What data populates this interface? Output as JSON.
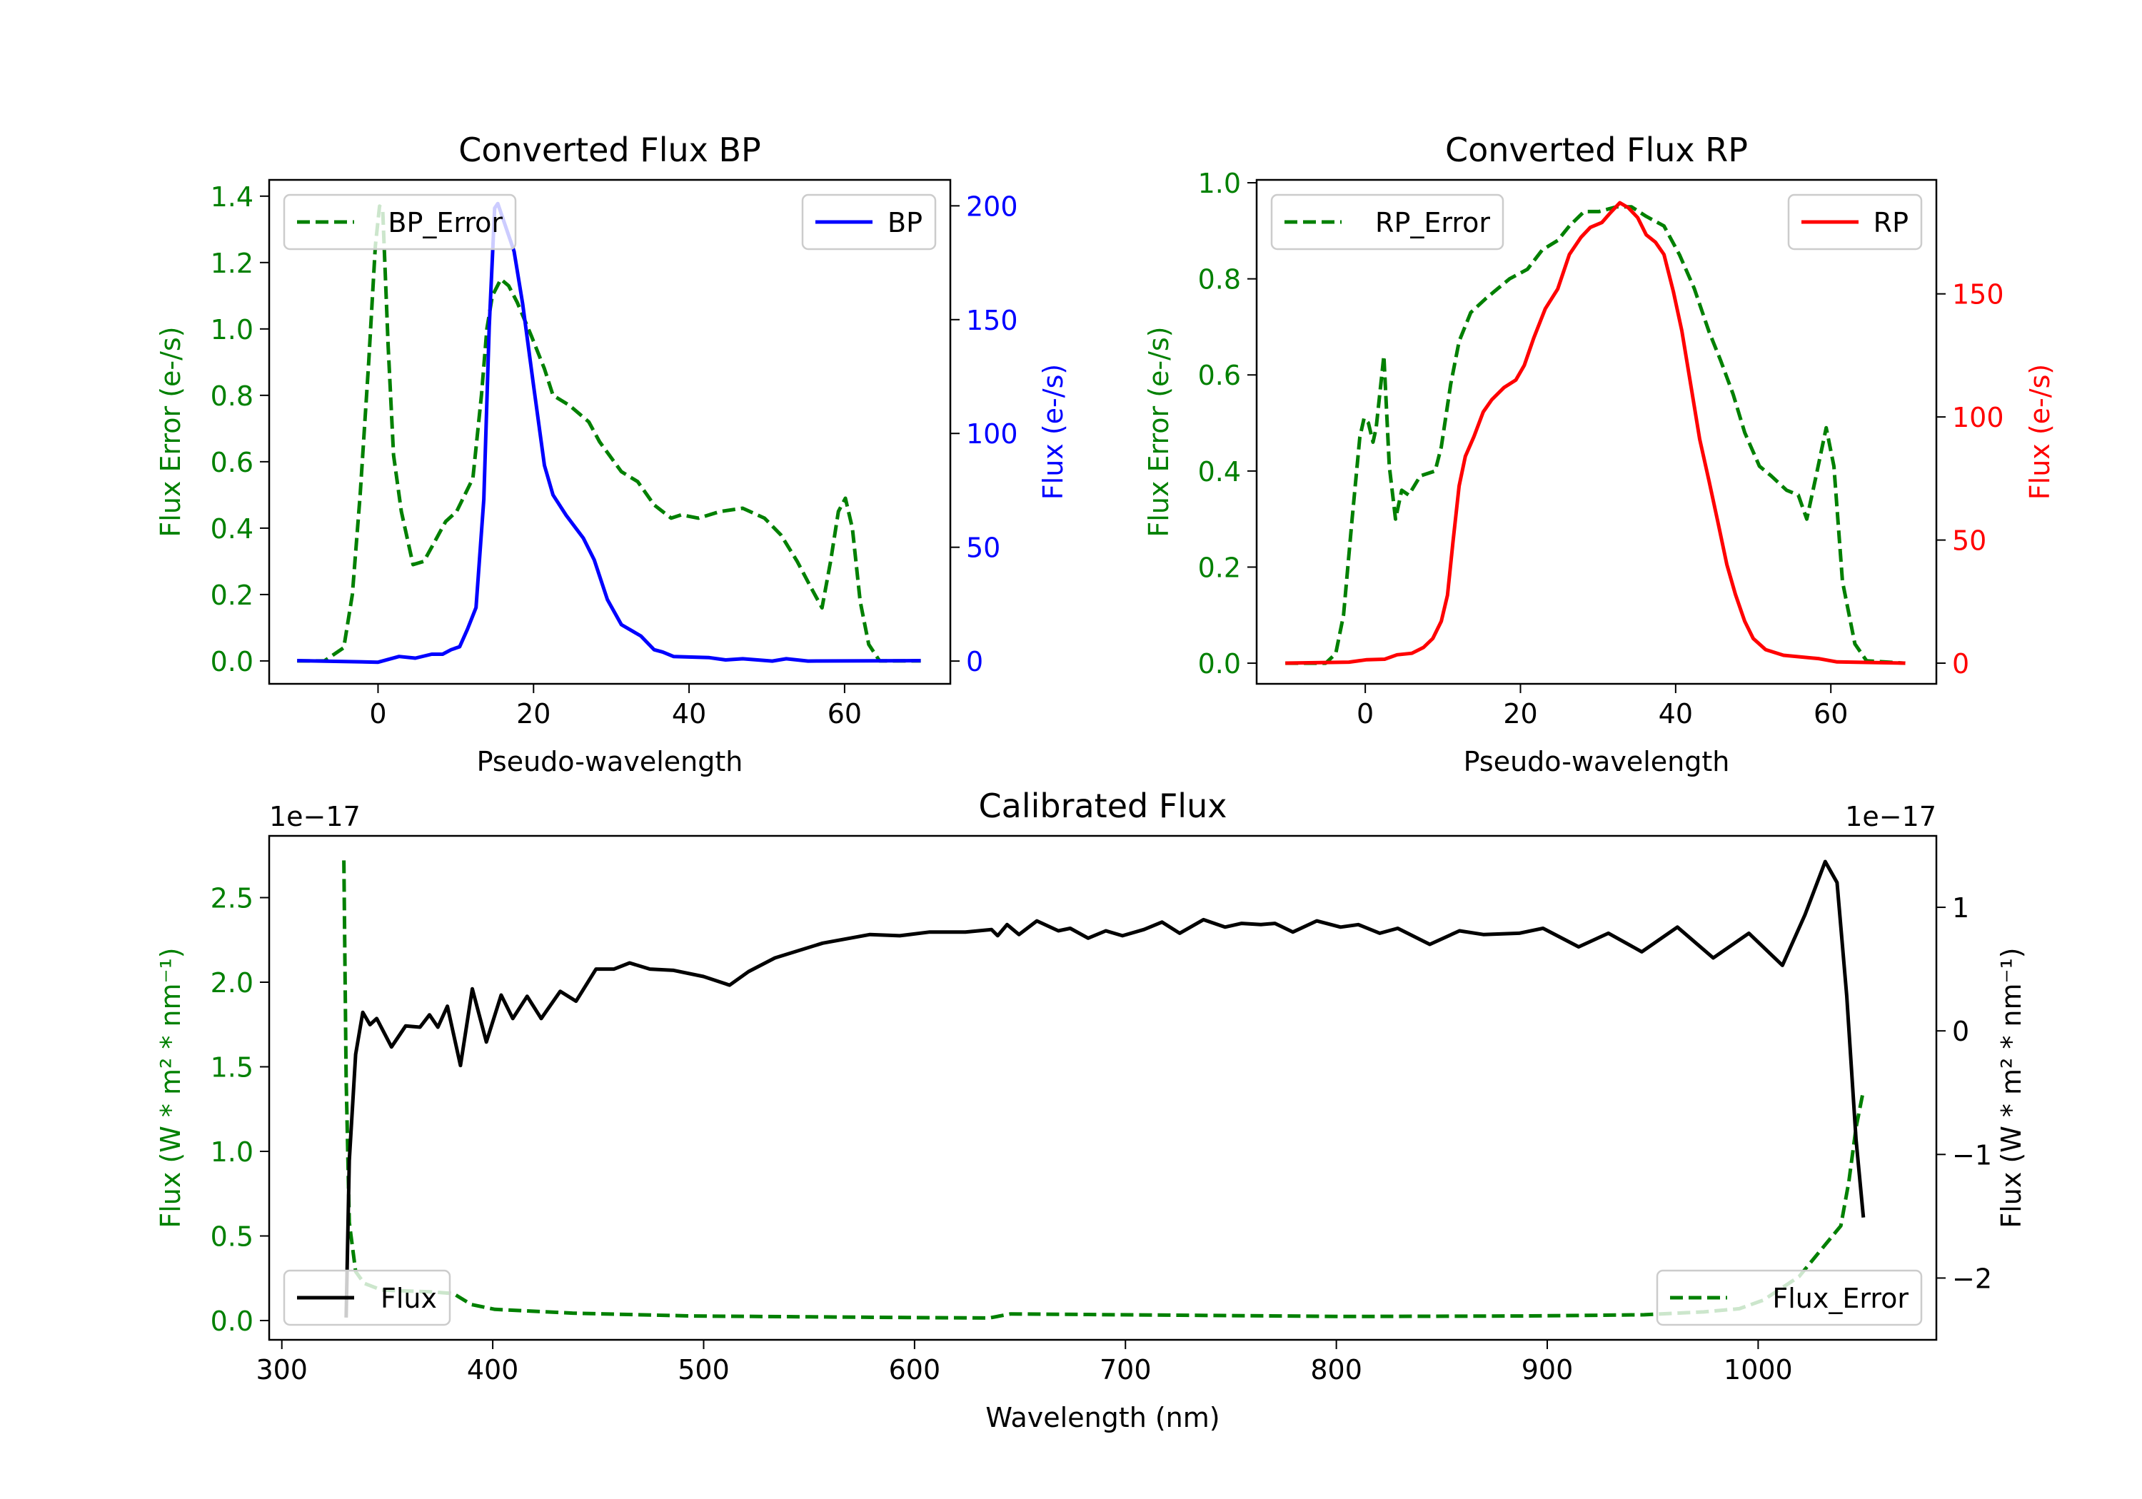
{
  "chart_data": [
    {
      "type": "line",
      "title": "Converted Flux BP",
      "xlabel": "Pseudo-wavelength",
      "ylabel_left": "Flux Error (e-/s)",
      "ylabel_right": "Flux (e-/s)",
      "left_color": "#008000",
      "right_color": "#0000ff",
      "xlim": [
        -14,
        73.6
      ],
      "ylim_left": [
        -0.069,
        1.449
      ],
      "ylim_right": [
        -10,
        211.4
      ],
      "xticks": [
        0,
        20,
        40,
        60
      ],
      "xtick_labels": [
        "0",
        "20",
        "40",
        "60"
      ],
      "yticks_left": [
        0,
        0.2,
        0.4,
        0.6,
        0.8,
        1.0,
        1.2,
        1.4
      ],
      "ytick_labels_left": [
        "0.0",
        "0.2",
        "0.4",
        "0.6",
        "0.8",
        "1.0",
        "1.2",
        "1.4"
      ],
      "yticks_right": [
        0,
        50,
        100,
        150,
        200
      ],
      "ytick_labels_right": [
        "0",
        "50",
        "100",
        "150",
        "200"
      ],
      "grid": false,
      "legends": [
        {
          "label": "BP_Error",
          "placement": "upper-left",
          "color": "#008000",
          "style": "dashed"
        },
        {
          "label": "BP",
          "placement": "upper-right",
          "color": "#0000ff",
          "style": "solid"
        }
      ],
      "series": [
        {
          "name": "BP_Error",
          "axis": "left",
          "color": "#008000",
          "style": "dashed",
          "x": [
            -10.4,
            -6.9,
            -4.4,
            -3.3,
            -2.3,
            -1.2,
            -0.35,
            0.2,
            0.6,
            1.3,
            2,
            3,
            4.5,
            5.9,
            7.3,
            8.7,
            10.1,
            12.2,
            13.3,
            14,
            14.7,
            15.8,
            16.8,
            17.9,
            19.7,
            21.4,
            22.5,
            24.6,
            27.1,
            28.5,
            31.3,
            33.4,
            35.5,
            37.7,
            39,
            41.2,
            44,
            46.9,
            49.7,
            51.8,
            53.9,
            55.7,
            57.1,
            58.2,
            59.2,
            60.1,
            61,
            62,
            63.1,
            64.5,
            69.8
          ],
          "y": [
            0,
            0,
            0.04,
            0.2,
            0.5,
            0.9,
            1.25,
            1.37,
            1.36,
            0.95,
            0.62,
            0.45,
            0.29,
            0.3,
            0.36,
            0.42,
            0.45,
            0.55,
            0.8,
            1.0,
            1.1,
            1.15,
            1.13,
            1.08,
            0.98,
            0.88,
            0.8,
            0.77,
            0.72,
            0.66,
            0.57,
            0.54,
            0.47,
            0.43,
            0.44,
            0.43,
            0.45,
            0.46,
            0.43,
            0.38,
            0.3,
            0.22,
            0.16,
            0.3,
            0.45,
            0.49,
            0.4,
            0.18,
            0.05,
            0,
            0
          ]
        },
        {
          "name": "BP",
          "axis": "right",
          "color": "#0000ff",
          "style": "solid",
          "x": [
            -10.4,
            0,
            2.7,
            4.8,
            6.9,
            8.3,
            9.4,
            10.5,
            11.5,
            12.6,
            13.6,
            14.3,
            15,
            15.4,
            17.5,
            18.6,
            20,
            21.4,
            22.5,
            24.2,
            26.4,
            27.8,
            29.5,
            31.3,
            33.8,
            35.5,
            36.6,
            38,
            42.6,
            44.7,
            46.9,
            50.7,
            52.5,
            55.3,
            69.8
          ],
          "y": [
            0.2,
            -0.5,
            2,
            1.3,
            3,
            3,
            5,
            6.3,
            14,
            23.5,
            71,
            147,
            199,
            201,
            180,
            157,
            121,
            86,
            73,
            64,
            54,
            44.5,
            27,
            16,
            11,
            5,
            4,
            2,
            1.5,
            0.5,
            1,
            0,
            1,
            0,
            0.2
          ]
        }
      ]
    },
    {
      "type": "line",
      "title": "Converted Flux RP",
      "xlabel": "Pseudo-wavelength",
      "ylabel_left": "Flux Error (e-/s)",
      "ylabel_right": "Flux (e-/s)",
      "left_color": "#008000",
      "right_color": "#ff0000",
      "xlim": [
        -14,
        73.6
      ],
      "ylim_left": [
        -0.043,
        1.006
      ],
      "ylim_right": [
        -8.4,
        196.3
      ],
      "xticks": [
        0,
        20,
        40,
        60
      ],
      "xtick_labels": [
        "0",
        "20",
        "40",
        "60"
      ],
      "yticks_left": [
        0,
        0.2,
        0.4,
        0.6,
        0.8,
        1.0
      ],
      "ytick_labels_left": [
        "0.0",
        "0.2",
        "0.4",
        "0.6",
        "0.8",
        "1.0"
      ],
      "yticks_right": [
        0,
        50,
        100,
        150
      ],
      "ytick_labels_right": [
        "0",
        "50",
        "100",
        "150"
      ],
      "grid": false,
      "legends": [
        {
          "label": "RP_Error",
          "placement": "upper-left",
          "color": "#008000",
          "style": "dashed"
        },
        {
          "label": "RP",
          "placement": "upper-right",
          "color": "#ff0000",
          "style": "solid"
        }
      ],
      "series": [
        {
          "name": "RP_Error",
          "axis": "left",
          "color": "#008000",
          "style": "dashed",
          "x": [
            -10.3,
            -5.1,
            -3.8,
            -2.8,
            -1.7,
            -0.7,
            -0.15,
            0.4,
            1.0,
            1.4,
            2.4,
            3.1,
            3.9,
            4.7,
            5.6,
            7.1,
            9.0,
            9.8,
            11.0,
            12.1,
            13.6,
            15.6,
            17.1,
            18.6,
            20.9,
            22.8,
            24.8,
            26.3,
            28.2,
            30.1,
            32.4,
            34.3,
            36.2,
            38.5,
            40.5,
            42.4,
            44.3,
            45.8,
            47.4,
            48.9,
            50.8,
            52.3,
            54.3,
            55.8,
            56.9,
            58.1,
            59.4,
            60.4,
            61.5,
            63.1,
            64.6,
            69.6
          ],
          "y": [
            0,
            0,
            0.02,
            0.1,
            0.3,
            0.47,
            0.51,
            0.5,
            0.46,
            0.49,
            0.64,
            0.41,
            0.3,
            0.36,
            0.35,
            0.39,
            0.4,
            0.45,
            0.58,
            0.67,
            0.73,
            0.76,
            0.78,
            0.8,
            0.82,
            0.86,
            0.88,
            0.91,
            0.94,
            0.94,
            0.95,
            0.95,
            0.93,
            0.91,
            0.85,
            0.78,
            0.69,
            0.63,
            0.56,
            0.48,
            0.41,
            0.39,
            0.36,
            0.35,
            0.3,
            0.39,
            0.49,
            0.41,
            0.17,
            0.04,
            0.005,
            0
          ]
        },
        {
          "name": "RP",
          "axis": "right",
          "color": "#ff0000",
          "style": "solid",
          "x": [
            -10.3,
            -2.1,
            0.2,
            2.5,
            4.1,
            6.0,
            7.5,
            8.7,
            9.8,
            10.6,
            11.3,
            12.1,
            12.9,
            14.0,
            15.2,
            16.3,
            17.9,
            19.4,
            20.5,
            21.7,
            23.2,
            24.8,
            26.3,
            27.8,
            29.0,
            30.5,
            31.6,
            32.8,
            33.9,
            35.1,
            36.2,
            37.4,
            38.5,
            39.7,
            40.8,
            42.0,
            43.1,
            44.3,
            45.4,
            46.6,
            47.7,
            48.9,
            50.0,
            51.6,
            53.9,
            58.5,
            60.8,
            69.6
          ],
          "y": [
            0,
            0.4,
            1.4,
            1.6,
            3.4,
            4,
            6.4,
            10,
            17,
            27.6,
            49,
            72,
            84,
            92,
            102,
            107,
            112,
            115,
            121,
            132,
            144,
            152,
            166,
            173,
            177,
            179,
            183,
            187,
            185,
            181,
            174,
            171,
            166,
            151,
            135,
            112,
            91,
            74,
            58,
            40,
            28,
            17,
            10,
            5.5,
            3.2,
            1.8,
            0.5,
            0
          ]
        }
      ]
    },
    {
      "type": "line",
      "title": "Calibrated Flux",
      "xlabel": "Wavelength (nm)",
      "ylabel_left": "Flux (W * m² * nm⁻¹)",
      "ylabel_right": "Flux (W * m² * nm⁻¹)",
      "offset_left": "1e−17",
      "offset_right": "1e−17",
      "left_color": "#008000",
      "right_color": "#000000",
      "xlim": [
        294,
        1084.5
      ],
      "ylim_left": [
        -0.114,
        2.865
      ],
      "ylim_right": [
        -2.5,
        1.578
      ],
      "xticks": [
        300,
        400,
        500,
        600,
        700,
        800,
        900,
        1000
      ],
      "xtick_labels": [
        "300",
        "400",
        "500",
        "600",
        "700",
        "800",
        "900",
        "1000"
      ],
      "yticks_left": [
        0,
        0.5,
        1.0,
        1.5,
        2.0,
        2.5
      ],
      "ytick_labels_left": [
        "0.0",
        "0.5",
        "1.0",
        "1.5",
        "2.0",
        "2.5"
      ],
      "yticks_right": [
        -2,
        -1,
        0,
        1
      ],
      "ytick_labels_right": [
        "−2",
        "−1",
        "0",
        "1"
      ],
      "grid": false,
      "legends": [
        {
          "label": "Flux",
          "placement": "lower-left",
          "color": "#000000",
          "style": "solid"
        },
        {
          "label": "Flux_Error",
          "placement": "lower-right",
          "color": "#008000",
          "style": "dashed"
        }
      ],
      "series": [
        {
          "name": "Flux_Error",
          "axis": "left",
          "color": "#008000",
          "style": "dashed",
          "x": [
            329.4,
            330.5,
            332,
            335,
            339,
            347.4,
            370,
            381.3,
            389.8,
            401,
            437.8,
            494.2,
            550.7,
            607.2,
            635.4,
            645.6,
            720.1,
            804.8,
            889.5,
            946,
            974.2,
            991.1,
            1002.4,
            1019.4,
            1030.6,
            1039.2,
            1043,
            1046.4,
            1049.9
          ],
          "y": [
            2.72,
            1.43,
            0.58,
            0.29,
            0.22,
            0.18,
            0.17,
            0.16,
            0.095,
            0.066,
            0.044,
            0.027,
            0.022,
            0.017,
            0.015,
            0.039,
            0.032,
            0.024,
            0.027,
            0.034,
            0.051,
            0.07,
            0.12,
            0.26,
            0.43,
            0.56,
            0.82,
            1.14,
            1.36
          ]
        },
        {
          "name": "Flux",
          "axis": "right",
          "color": "#000000",
          "style": "solid",
          "x": [
            330.5,
            332,
            335,
            338.4,
            341.8,
            345,
            352,
            358.7,
            365.5,
            370,
            374,
            378.5,
            384.7,
            390.3,
            397,
            404,
            409.5,
            416.3,
            423,
            432,
            439.5,
            449,
            457.5,
            464.9,
            474.5,
            485.8,
            499.9,
            512.3,
            521.3,
            533.8,
            556.4,
            578.9,
            593,
            607.2,
            624.1,
            636.5,
            639.4,
            643.9,
            649.5,
            658,
            668.2,
            673.8,
            682.3,
            690.7,
            698.6,
            708.8,
            717.3,
            725.7,
            737,
            747.2,
            755.1,
            764.2,
            770.9,
            779.4,
            790.7,
            802,
            810.4,
            820.6,
            829.1,
            844.3,
            858.4,
            869.7,
            886.7,
            898,
            914.9,
            929,
            944.8,
            961.7,
            978.7,
            995.6,
            1011.5,
            1022.2,
            1031.8,
            1037.4,
            1042,
            1046.4,
            1049.9
          ],
          "y": [
            -2.32,
            -1.05,
            -0.19,
            0.15,
            0.05,
            0.1,
            -0.13,
            0.04,
            0.03,
            0.13,
            0.03,
            0.2,
            -0.28,
            0.34,
            -0.09,
            0.29,
            0.1,
            0.28,
            0.1,
            0.32,
            0.24,
            0.5,
            0.5,
            0.55,
            0.5,
            0.49,
            0.44,
            0.37,
            0.48,
            0.59,
            0.71,
            0.78,
            0.77,
            0.8,
            0.8,
            0.82,
            0.77,
            0.86,
            0.78,
            0.89,
            0.81,
            0.83,
            0.75,
            0.81,
            0.77,
            0.82,
            0.88,
            0.79,
            0.9,
            0.84,
            0.87,
            0.86,
            0.87,
            0.8,
            0.89,
            0.84,
            0.86,
            0.79,
            0.83,
            0.7,
            0.81,
            0.78,
            0.79,
            0.83,
            0.68,
            0.79,
            0.64,
            0.84,
            0.59,
            0.79,
            0.53,
            0.94,
            1.37,
            1.2,
            0.28,
            -0.88,
            -1.51
          ]
        }
      ]
    }
  ]
}
